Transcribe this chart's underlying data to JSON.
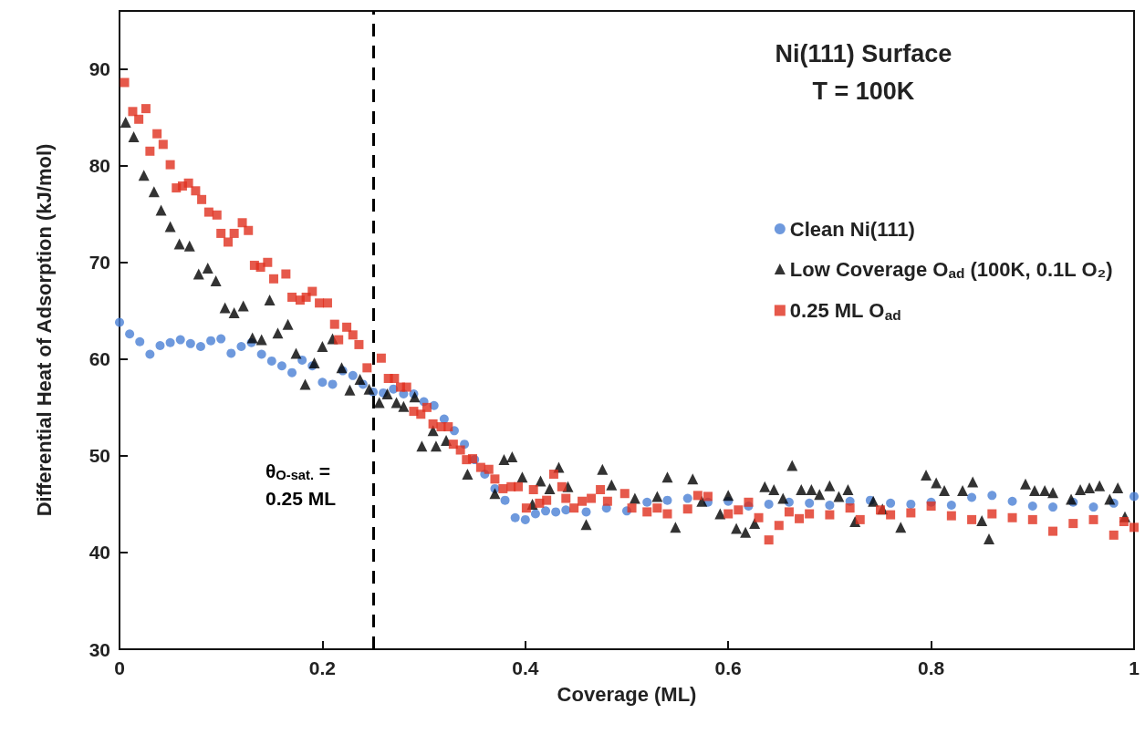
{
  "chart_data": {
    "type": "scatter",
    "title": "Ni(111) Surface",
    "subtitle": "T = 100K",
    "xlabel": "Coverage (ML)",
    "ylabel": "Differential Heat of Adsorption (kJ/mol)",
    "xlim": [
      0,
      1
    ],
    "xticks": [
      0,
      0.2,
      0.4,
      0.6,
      0.8,
      1
    ],
    "ylim": [
      30,
      96
    ],
    "yticks": [
      30,
      40,
      50,
      60,
      70,
      80,
      90
    ],
    "grid": false,
    "legend": "right",
    "ref_lines": [
      {
        "axis": "x",
        "value": 0.25,
        "color": "#000000",
        "line_style": "dashed"
      }
    ],
    "annotations": [
      {
        "text": "θ$_{O-sat.}$ =\n0.25 ML",
        "x": 0.25,
        "y": 47
      }
    ],
    "series": [
      {
        "name": "Clean Ni(111)",
        "color": "#4a7fd4",
        "marker": "circle",
        "x": [
          0,
          0.01,
          0.02,
          0.03,
          0.04,
          0.05,
          0.06,
          0.07,
          0.08,
          0.09,
          0.1,
          0.11,
          0.12,
          0.13,
          0.14,
          0.15,
          0.16,
          0.17,
          0.18,
          0.19,
          0.2,
          0.21,
          0.22,
          0.23,
          0.24,
          0.25,
          0.26,
          0.27,
          0.28,
          0.29,
          0.3,
          0.31,
          0.32,
          0.33,
          0.34,
          0.35,
          0.36,
          0.37,
          0.38,
          0.39,
          0.4,
          0.41,
          0.42,
          0.43,
          0.44,
          0.46,
          0.48,
          0.5,
          0.52,
          0.54,
          0.56,
          0.58,
          0.6,
          0.62,
          0.64,
          0.66,
          0.68,
          0.7,
          0.72,
          0.74,
          0.76,
          0.78,
          0.8,
          0.82,
          0.84,
          0.86,
          0.88,
          0.9,
          0.92,
          0.94,
          0.96,
          0.98,
          1
        ],
        "values": [
          63.8,
          62.6,
          61.8,
          60.5,
          61.4,
          61.7,
          62,
          61.6,
          61.3,
          61.9,
          62.1,
          60.6,
          61.3,
          61.7,
          60.5,
          59.8,
          59.3,
          58.6,
          59.9,
          59.3,
          57.6,
          57.4,
          58.8,
          58.3,
          57.4,
          56.6,
          56.5,
          56.9,
          56.4,
          56.4,
          55.6,
          55.2,
          53.8,
          52.6,
          51.2,
          49.6,
          48.1,
          46.6,
          45.4,
          43.6,
          43.4,
          44,
          44.3,
          44.2,
          44.4,
          44.2,
          44.6,
          44.3,
          45.2,
          45.4,
          45.6,
          45.2,
          45.3,
          44.8,
          45,
          45.2,
          45.1,
          44.9,
          45.3,
          45.4,
          45.1,
          45,
          45.2,
          44.9,
          45.7,
          45.9,
          45.3,
          44.8,
          44.7,
          45.2,
          44.7,
          45.1,
          45.8
        ]
      },
      {
        "name": "Low Coverage O$_{ad}$ (100K, 0.1L O₂)",
        "color": "#000000",
        "marker": "triangle",
        "x": [
          0.006,
          0.014,
          0.024,
          0.034,
          0.041,
          0.05,
          0.059,
          0.069,
          0.078,
          0.087,
          0.095,
          0.104,
          0.113,
          0.122,
          0.131,
          0.14,
          0.148,
          0.156,
          0.166,
          0.174,
          0.183,
          0.192,
          0.2,
          0.21,
          0.219,
          0.227,
          0.237,
          0.246,
          0.256,
          0.264,
          0.273,
          0.28,
          0.291,
          0.298,
          0.309,
          0.312,
          0.322,
          0.343,
          0.37,
          0.379,
          0.387,
          0.397,
          0.407,
          0.415,
          0.424,
          0.433,
          0.442,
          0.46,
          0.476,
          0.485,
          0.508,
          0.53,
          0.54,
          0.548,
          0.565,
          0.574,
          0.592,
          0.6,
          0.608,
          0.617,
          0.626,
          0.636,
          0.645,
          0.654,
          0.663,
          0.672,
          0.682,
          0.69,
          0.7,
          0.709,
          0.718,
          0.725,
          0.743,
          0.752,
          0.77,
          0.795,
          0.805,
          0.813,
          0.831,
          0.841,
          0.85,
          0.857,
          0.893,
          0.902,
          0.912,
          0.92,
          0.938,
          0.947,
          0.956,
          0.966,
          0.976,
          0.984,
          0.991
        ],
        "values": [
          84.5,
          83,
          79,
          77.3,
          75.4,
          73.7,
          71.9,
          71.7,
          68.8,
          69.4,
          68.1,
          65.3,
          64.8,
          65.5,
          62.2,
          62,
          66.1,
          62.7,
          63.6,
          60.6,
          57.4,
          59.6,
          61.3,
          62.1,
          59.1,
          56.8,
          57.9,
          56.9,
          55.5,
          56.4,
          55.5,
          55.1,
          56.1,
          51,
          52.6,
          51,
          51.6,
          48.1,
          46.1,
          49.6,
          49.9,
          47.8,
          45,
          47.4,
          46.6,
          48.8,
          46.8,
          42.9,
          48.6,
          47,
          45.6,
          45.8,
          47.8,
          42.6,
          47.6,
          45.3,
          44,
          45.9,
          42.5,
          42.1,
          43,
          46.8,
          46.5,
          45.6,
          49,
          46.5,
          46.5,
          46,
          46.9,
          45.8,
          46.5,
          43.2,
          45.3,
          44.5,
          42.6,
          48,
          47.2,
          46.4,
          46.4,
          47.3,
          43.3,
          41.4,
          47.1,
          46.4,
          46.4,
          46.2,
          45.5,
          46.5,
          46.7,
          46.9,
          45.5,
          46.7,
          43.7
        ]
      },
      {
        "name": "0.25 ML O$_{ad}$",
        "color": "#e0301e",
        "marker": "square",
        "x": [
          0.005,
          0.013,
          0.019,
          0.026,
          0.03,
          0.037,
          0.043,
          0.05,
          0.056,
          0.062,
          0.068,
          0.075,
          0.081,
          0.088,
          0.096,
          0.1,
          0.107,
          0.113,
          0.121,
          0.127,
          0.133,
          0.139,
          0.146,
          0.152,
          0.164,
          0.17,
          0.178,
          0.184,
          0.19,
          0.197,
          0.205,
          0.212,
          0.216,
          0.224,
          0.23,
          0.236,
          0.244,
          0.258,
          0.265,
          0.271,
          0.277,
          0.283,
          0.29,
          0.297,
          0.303,
          0.309,
          0.317,
          0.324,
          0.329,
          0.336,
          0.342,
          0.348,
          0.356,
          0.364,
          0.37,
          0.378,
          0.386,
          0.393,
          0.401,
          0.408,
          0.414,
          0.421,
          0.428,
          0.436,
          0.44,
          0.448,
          0.456,
          0.465,
          0.474,
          0.481,
          0.498,
          0.505,
          0.52,
          0.53,
          0.54,
          0.56,
          0.57,
          0.58,
          0.6,
          0.61,
          0.62,
          0.63,
          0.64,
          0.65,
          0.66,
          0.67,
          0.68,
          0.7,
          0.72,
          0.73,
          0.75,
          0.76,
          0.78,
          0.8,
          0.82,
          0.84,
          0.86,
          0.88,
          0.9,
          0.92,
          0.94,
          0.96,
          0.98,
          0.99,
          1
        ],
        "values": [
          88.6,
          85.6,
          84.8,
          85.9,
          81.5,
          83.3,
          82.2,
          80.1,
          77.7,
          77.9,
          78.2,
          77.4,
          76.5,
          75.2,
          74.9,
          73,
          72.1,
          73,
          74.1,
          73.3,
          69.7,
          69.5,
          70,
          68.3,
          68.8,
          66.4,
          66.1,
          66.4,
          67,
          65.8,
          65.8,
          63.6,
          62,
          63.3,
          62.5,
          61.5,
          59.1,
          60.1,
          58,
          58,
          57.1,
          57.1,
          54.6,
          54.3,
          55,
          53.3,
          53,
          53,
          51.2,
          50.6,
          49.6,
          49.7,
          48.8,
          48.6,
          47.6,
          46.6,
          46.8,
          46.8,
          44.6,
          46.5,
          45.1,
          45.4,
          48.1,
          46.8,
          45.6,
          44.6,
          45.3,
          45.6,
          46.5,
          45.3,
          46.1,
          44.6,
          44.2,
          44.6,
          44,
          44.5,
          45.9,
          45.8,
          44,
          44.4,
          45.2,
          43.6,
          41.3,
          42.8,
          44.2,
          43.5,
          44,
          43.9,
          44.6,
          43.4,
          44.4,
          43.9,
          44.1,
          44.8,
          43.8,
          43.4,
          44,
          43.6,
          43.4,
          42.2,
          43,
          43.4,
          41.8,
          43.2,
          42.6
        ]
      }
    ]
  }
}
